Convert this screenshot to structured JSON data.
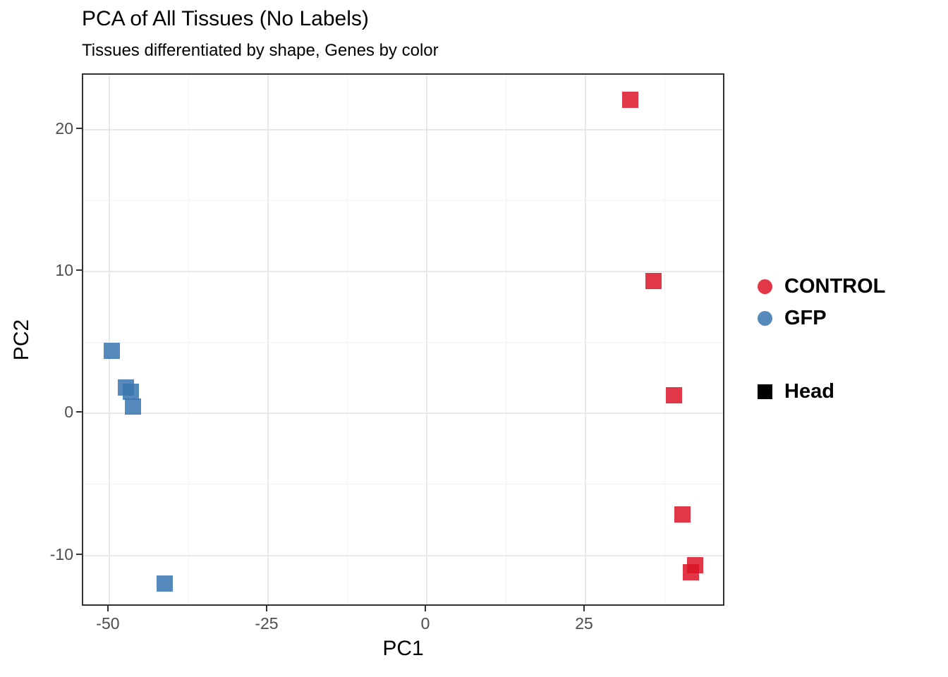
{
  "chart_data": {
    "type": "scatter",
    "title": "PCA of All Tissues (No Labels)",
    "subtitle": "Tissues differentiated by shape, Genes by color",
    "xlabel": "PC1",
    "ylabel": "PC2",
    "xlim": [
      -54.1,
      47.1
    ],
    "ylim": [
      -13.65,
      23.85
    ],
    "x_major_ticks": [
      -50,
      -25,
      0,
      25
    ],
    "x_minor_ticks": [
      -37.5,
      -12.5,
      12.5,
      37.5
    ],
    "y_major_ticks": [
      20,
      10,
      0,
      -10
    ],
    "y_minor_ticks": [
      15,
      5,
      -5
    ],
    "grid": "major+minor",
    "legend_position": "right",
    "marker_size_px": 23,
    "series": [
      {
        "name": "CONTROL",
        "tissue": "Head",
        "marker": "square",
        "color": "#DC1428",
        "fill_rgba": "rgba(220, 20, 40, 0.85)",
        "points": [
          {
            "x": 32.1,
            "y": 22.1
          },
          {
            "x": 35.7,
            "y": 9.3
          },
          {
            "x": 38.9,
            "y": 1.3
          },
          {
            "x": 40.3,
            "y": -7.1
          },
          {
            "x": 42.3,
            "y": -10.7
          },
          {
            "x": 41.6,
            "y": -11.2
          }
        ]
      },
      {
        "name": "GFP",
        "tissue": "Head",
        "marker": "square",
        "color": "#3A75B0",
        "fill_rgba": "rgba(58, 117, 176, 0.85)",
        "points": [
          {
            "x": -49.6,
            "y": 4.4
          },
          {
            "x": -47.4,
            "y": 1.8
          },
          {
            "x": -46.6,
            "y": 1.5
          },
          {
            "x": -46.3,
            "y": 0.5
          },
          {
            "x": -41.3,
            "y": -12.0
          }
        ]
      }
    ]
  },
  "legend": {
    "color_entries": [
      {
        "label": "CONTROL",
        "swatch": "circle",
        "color": "rgba(220, 20, 40, 0.85)"
      },
      {
        "label": "GFP",
        "swatch": "circle",
        "color": "rgba(58, 117, 176, 0.85)"
      }
    ],
    "shape_entries": [
      {
        "label": "Head",
        "swatch": "square",
        "color": "#000000"
      }
    ]
  },
  "colors": {
    "panel_border": "#333333",
    "grid_major": "#E9E9E9",
    "grid_minor": "#F3F3F3",
    "tick": "#333333",
    "tick_label": "#4D4D4D",
    "text": "#000000",
    "background": "#FFFFFF"
  }
}
